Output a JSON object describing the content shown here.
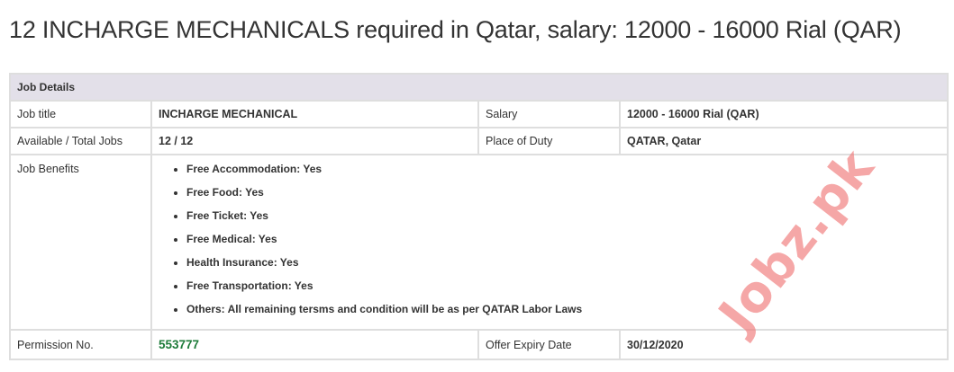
{
  "page_title": "12 INCHARGE MECHANICALS required in Qatar, salary: 12000 - 16000 Rial (QAR)",
  "table": {
    "header": "Job Details",
    "job_title_label": "Job title",
    "job_title": "INCHARGE MECHANICAL",
    "salary_label": "Salary",
    "salary": "12000 - 16000 Rial (QAR)",
    "jobs_label": "Available / Total Jobs",
    "jobs": "12 / 12",
    "place_label": "Place of Duty",
    "place": "QATAR, Qatar",
    "benefits_label": "Job Benefits",
    "benefits": [
      "Free Accommodation: Yes",
      "Free Food: Yes",
      "Free Ticket: Yes",
      "Free Medical: Yes",
      "Health Insurance: Yes",
      "Free Transportation: Yes",
      "Others: All remaining tersms and condition will be as per QATAR Labor Laws"
    ],
    "permission_label": "Permission No.",
    "permission": "553777",
    "expiry_label": "Offer Expiry Date",
    "expiry": "30/12/2020"
  },
  "watermark": "Jobz.pk",
  "colors": {
    "permission_green": "#1e7b3a",
    "header_bg": "#e3e0e9",
    "watermark": "#f07878"
  }
}
